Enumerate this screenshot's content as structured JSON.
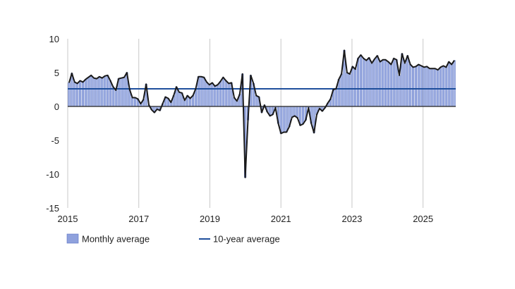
{
  "chart_data": {
    "type": "bar+line",
    "start": "2015-01",
    "frequency": "monthly",
    "xlim": [
      2015,
      2025.92
    ],
    "ylim": [
      -15,
      10
    ],
    "yticks": [
      10,
      5,
      0,
      -5,
      -10,
      -15
    ],
    "ytick_labels": [
      "10",
      "5",
      "0",
      "-5",
      "-10",
      "-15"
    ],
    "xticks": [
      2015,
      2017,
      2019,
      2021,
      2023,
      2025
    ],
    "xtick_labels": [
      "2015",
      "2017",
      "2019",
      "2021",
      "2023",
      "2025"
    ],
    "grid": {
      "vertical": true,
      "horizontal": false
    },
    "series": [
      {
        "name": "Monthly average",
        "kind": "bar",
        "values": [
          3.5,
          4.9,
          3.6,
          3.4,
          3.8,
          3.6,
          4.0,
          4.3,
          4.6,
          4.2,
          4.1,
          4.4,
          4.2,
          4.5,
          4.6,
          3.8,
          2.9,
          2.4,
          4.1,
          4.2,
          4.3,
          5.0,
          2.5,
          1.3,
          1.3,
          1.1,
          0.4,
          1.0,
          3.3,
          0.2,
          -0.5,
          -0.9,
          -0.4,
          -0.6,
          0.4,
          1.4,
          1.2,
          0.6,
          1.6,
          2.9,
          2.1,
          2.0,
          0.9,
          1.6,
          1.2,
          1.6,
          2.6,
          4.4,
          4.4,
          4.3,
          3.6,
          3.2,
          3.5,
          3.0,
          3.2,
          3.7,
          4.3,
          3.8,
          3.4,
          3.5,
          1.3,
          0.8,
          1.8,
          4.8,
          -10.5,
          -2.0,
          4.6,
          3.4,
          1.6,
          1.4,
          -0.9,
          0.2,
          -0.8,
          -1.4,
          -1.2,
          -0.2,
          -2.5,
          -4.0,
          -3.8,
          -3.8,
          -3.0,
          -1.6,
          -1.4,
          -1.7,
          -2.8,
          -2.6,
          -2.0,
          -0.2,
          -2.5,
          -3.9,
          -1.2,
          -0.3,
          -0.7,
          -0.2,
          0.5,
          1.1,
          2.5,
          2.6,
          4.0,
          4.8,
          8.3,
          5.0,
          4.8,
          5.9,
          5.5,
          7.1,
          7.6,
          7.1,
          6.8,
          7.2,
          6.4,
          7.0,
          7.5,
          6.6,
          6.9,
          6.9,
          6.6,
          6.2,
          7.1,
          6.9,
          4.6,
          7.8,
          6.4,
          7.5,
          6.2,
          5.8,
          5.9,
          6.2,
          6.0,
          5.8,
          5.9,
          5.6,
          5.6,
          5.6,
          5.4,
          5.8,
          6.0,
          5.8,
          6.6,
          6.2,
          6.8
        ]
      },
      {
        "name": "Monthly average",
        "kind": "line",
        "values": [
          3.5,
          4.9,
          3.6,
          3.4,
          3.8,
          3.6,
          4.0,
          4.3,
          4.6,
          4.2,
          4.1,
          4.4,
          4.2,
          4.5,
          4.6,
          3.8,
          2.9,
          2.4,
          4.1,
          4.2,
          4.3,
          5.0,
          2.5,
          1.3,
          1.3,
          1.1,
          0.4,
          1.0,
          3.3,
          0.2,
          -0.5,
          -0.9,
          -0.4,
          -0.6,
          0.4,
          1.4,
          1.2,
          0.6,
          1.6,
          2.9,
          2.1,
          2.0,
          0.9,
          1.6,
          1.2,
          1.6,
          2.6,
          4.4,
          4.4,
          4.3,
          3.6,
          3.2,
          3.5,
          3.0,
          3.2,
          3.7,
          4.3,
          3.8,
          3.4,
          3.5,
          1.3,
          0.8,
          1.8,
          4.8,
          -10.5,
          -2.0,
          4.6,
          3.4,
          1.6,
          1.4,
          -0.9,
          0.2,
          -0.8,
          -1.4,
          -1.2,
          -0.2,
          -2.5,
          -4.0,
          -3.8,
          -3.8,
          -3.0,
          -1.6,
          -1.4,
          -1.7,
          -2.8,
          -2.6,
          -2.0,
          -0.2,
          -2.5,
          -3.9,
          -1.2,
          -0.3,
          -0.7,
          -0.2,
          0.5,
          1.1,
          2.5,
          2.6,
          4.0,
          4.8,
          8.3,
          5.0,
          4.8,
          5.9,
          5.5,
          7.1,
          7.6,
          7.1,
          6.8,
          7.2,
          6.4,
          7.0,
          7.5,
          6.6,
          6.9,
          6.9,
          6.6,
          6.2,
          7.1,
          6.9,
          4.6,
          7.8,
          6.4,
          7.5,
          6.2,
          5.8,
          5.9,
          6.2,
          6.0,
          5.8,
          5.9,
          5.6,
          5.6,
          5.6,
          5.4,
          5.8,
          6.0,
          5.8,
          6.6,
          6.2,
          6.8
        ]
      },
      {
        "name": "10-year average",
        "kind": "hline",
        "value": 2.6
      }
    ],
    "legend": [
      {
        "label": "Monthly average",
        "swatch": "bar"
      },
      {
        "label": "10-year average",
        "swatch": "line"
      }
    ],
    "legend_position": "bottom-left",
    "colors": {
      "bar_fill": "#a7b6e6",
      "bar_stroke": "#5a73c4",
      "legend_swatch": "#8fa1dd",
      "line": "#1a1a1a",
      "average_line": "#1f4f9c",
      "grid": "#c8c8c8",
      "zero_line": "#222222"
    }
  }
}
